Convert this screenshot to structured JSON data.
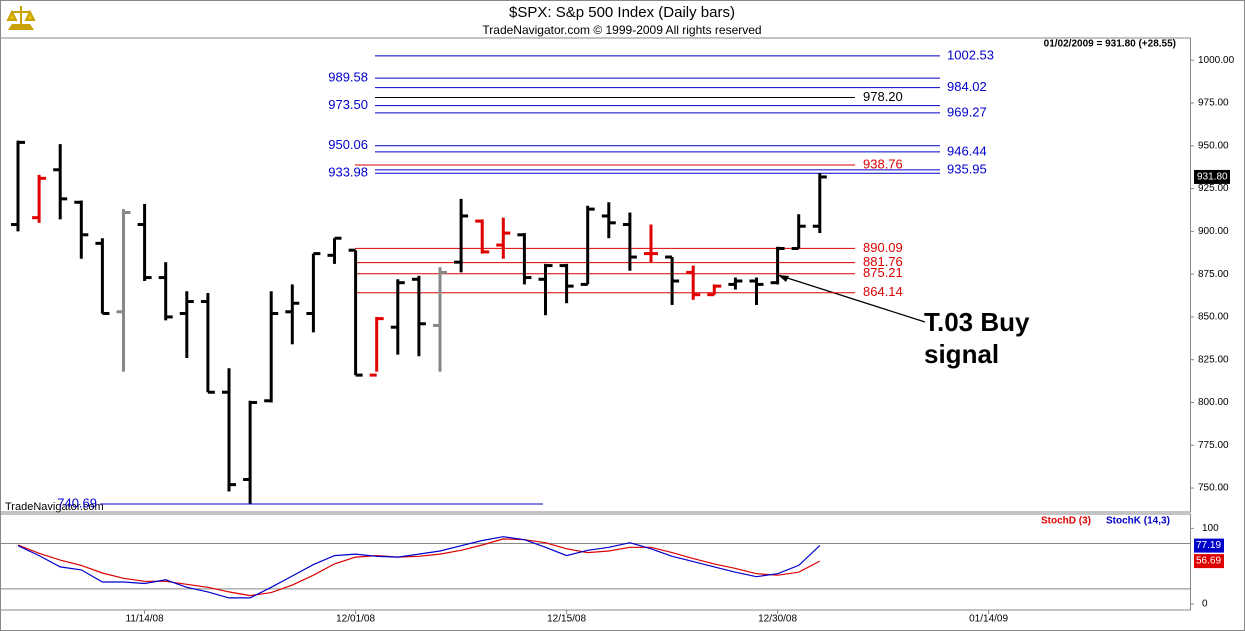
{
  "chart_data": {
    "type": "ohlc",
    "title": "$SPX:  S&p 500 Index  (Daily bars)",
    "subtitle": "TradeNavigator.com © 1999-2009 All rights reserved",
    "header_info": "01/02/2009 = 931.80 (+28.55)",
    "watermark": "TradeNavigator.com",
    "annotation": "T.03 Buy signal",
    "categories": [
      null,
      null,
      null,
      null,
      null,
      null,
      "11/14/08",
      null,
      null,
      null,
      null,
      null,
      null,
      null,
      null,
      null,
      "12/01/08",
      null,
      null,
      null,
      null,
      null,
      null,
      null,
      null,
      null,
      "12/15/08",
      null,
      null,
      null,
      null,
      null,
      null,
      null,
      null,
      null,
      "12/30/08",
      null,
      null,
      null,
      null,
      null,
      null,
      null,
      null,
      null,
      "01/14/09",
      null,
      null,
      null,
      null,
      null,
      null,
      null,
      null,
      null
    ],
    "open": [
      904,
      908,
      936,
      917,
      893,
      853,
      904,
      873,
      852,
      859,
      806,
      755,
      801,
      853,
      852,
      886,
      889,
      816,
      844,
      872,
      845,
      882,
      906,
      892,
      898,
      872,
      880,
      869,
      909,
      904,
      887,
      885,
      876,
      863,
      869,
      871,
      870,
      890,
      903,
      null,
      null,
      null,
      null,
      null,
      null,
      null,
      null,
      null,
      null,
      null,
      null,
      null,
      null,
      null,
      null,
      null
    ],
    "high": [
      953,
      933,
      951,
      918,
      896,
      913,
      916,
      882,
      865,
      864,
      820,
      801,
      865,
      869,
      887,
      896,
      889,
      850,
      872,
      874,
      879,
      919,
      907,
      908,
      899,
      881,
      881,
      915,
      917,
      911,
      904,
      885,
      880,
      869,
      873,
      873,
      891,
      910,
      934,
      null,
      null,
      null,
      null,
      null,
      null,
      null,
      null,
      null,
      null,
      null,
      null,
      null,
      null,
      null,
      null,
      null
    ],
    "low": [
      900,
      905,
      907,
      884,
      852,
      818,
      871,
      848,
      826,
      806,
      748,
      741,
      800,
      834,
      841,
      881,
      816,
      818,
      828,
      827,
      818,
      876,
      887,
      884,
      869,
      851,
      858,
      869,
      896,
      877,
      882,
      857,
      860,
      863,
      866,
      857,
      869,
      890,
      899,
      null,
      null,
      null,
      null,
      null,
      null,
      null,
      null,
      null,
      null,
      null,
      null,
      null,
      null,
      null,
      null,
      null
    ],
    "close": [
      952,
      931,
      919,
      898,
      852,
      911,
      873,
      850,
      859,
      806,
      752,
      800,
      852,
      858,
      887,
      896,
      816,
      849,
      870,
      846,
      876,
      909,
      888,
      899,
      873,
      880,
      868,
      913,
      905,
      885,
      887,
      871,
      863,
      868,
      871,
      869,
      890,
      903,
      931.8,
      null,
      null,
      null,
      null,
      null,
      null,
      null,
      null,
      null,
      null,
      null,
      null,
      null,
      null,
      null,
      null,
      null
    ],
    "bar_colors": [
      "black",
      "red",
      "black",
      "black",
      "black",
      "gray",
      "black",
      "black",
      "black",
      "black",
      "black",
      "black",
      "black",
      "black",
      "black",
      "black",
      "black",
      "red",
      "black",
      "black",
      "gray",
      "black",
      "red",
      "red",
      "black",
      "black",
      "black",
      "black",
      "black",
      "black",
      "red",
      "black",
      "red",
      "red",
      "black",
      "black",
      "black",
      "black",
      "black",
      null,
      null,
      null,
      null,
      null,
      null,
      null,
      null,
      null,
      null,
      null,
      null,
      null,
      null,
      null,
      null,
      null
    ],
    "price_tag": {
      "value": 931.8,
      "label": "931.80"
    },
    "ylim": [
      736,
      1013
    ],
    "yticks": [
      {
        "value": 750,
        "label": "750.00"
      },
      {
        "value": 775,
        "label": "775.00"
      },
      {
        "value": 800,
        "label": "800.00"
      },
      {
        "value": 825,
        "label": "825.00"
      },
      {
        "value": 850,
        "label": "850.00"
      },
      {
        "value": 875,
        "label": "875.00"
      },
      {
        "value": 900,
        "label": "900.00"
      },
      {
        "value": 925,
        "label": "925.00"
      },
      {
        "value": 950,
        "label": "950.00"
      },
      {
        "value": 975,
        "label": "975.00"
      },
      {
        "value": 1000,
        "label": "1000.00"
      }
    ],
    "levels": [
      {
        "value": 1002.53,
        "color": "#0000cc",
        "side": "right"
      },
      {
        "value": 989.58,
        "color": "#0000cc",
        "side": "left"
      },
      {
        "value": 984.02,
        "color": "#0000cc",
        "side": "right"
      },
      {
        "value": 978.2,
        "label": "978.20",
        "color": "#000000",
        "side": "right"
      },
      {
        "value": 973.5,
        "label": "973.50",
        "color": "#0000cc",
        "side": "left"
      },
      {
        "value": 969.27,
        "color": "#0000cc",
        "side": "right"
      },
      {
        "value": 950.06,
        "color": "#0000cc",
        "side": "left"
      },
      {
        "value": 946.44,
        "color": "#0000cc",
        "side": "right"
      },
      {
        "value": 938.76,
        "color": "#dd0000",
        "side": "right"
      },
      {
        "value": 935.95,
        "color": "#0000cc",
        "side": "right"
      },
      {
        "value": 933.98,
        "color": "#0000cc",
        "side": "left"
      },
      {
        "value": 890.09,
        "color": "#dd0000",
        "side": "right"
      },
      {
        "value": 881.76,
        "color": "#dd0000",
        "side": "right"
      },
      {
        "value": 875.21,
        "color": "#dd0000",
        "side": "right"
      },
      {
        "value": 864.14,
        "color": "#dd0000",
        "side": "right"
      },
      {
        "value": 740.69,
        "color": "#0000cc",
        "side": "left"
      }
    ],
    "stoch": {
      "ylim": [
        -8,
        119
      ],
      "yticks": [
        0,
        100
      ],
      "guides": [
        20,
        80
      ],
      "series": [
        {
          "name": "StochD (3)",
          "color": "#dd0000",
          "values": [
            78,
            67,
            58,
            51,
            41,
            34,
            30,
            30,
            26,
            22,
            16,
            11,
            15,
            25,
            38,
            53,
            62,
            64,
            62,
            63,
            66,
            71,
            78,
            86,
            85,
            81,
            73,
            68,
            70,
            75,
            75,
            68,
            60,
            53,
            47,
            40,
            38,
            42,
            56.69,
            null,
            null,
            null,
            null,
            null,
            null,
            null,
            null,
            null,
            null,
            null,
            null,
            null,
            null,
            null,
            null,
            null
          ]
        },
        {
          "name": "StochK (14,3)",
          "color": "#0000cc",
          "values": [
            77,
            64,
            49,
            45,
            29,
            29,
            27,
            32,
            22,
            16,
            8,
            8,
            22,
            37,
            52,
            64,
            66,
            63,
            62,
            66,
            70,
            77,
            84,
            89,
            85,
            75,
            64,
            71,
            75,
            81,
            73,
            63,
            56,
            49,
            42,
            36,
            40,
            51,
            77.19,
            null,
            null,
            null,
            null,
            null,
            null,
            null,
            null,
            null,
            null,
            null,
            null,
            null,
            null,
            null,
            null,
            null
          ]
        }
      ]
    }
  }
}
